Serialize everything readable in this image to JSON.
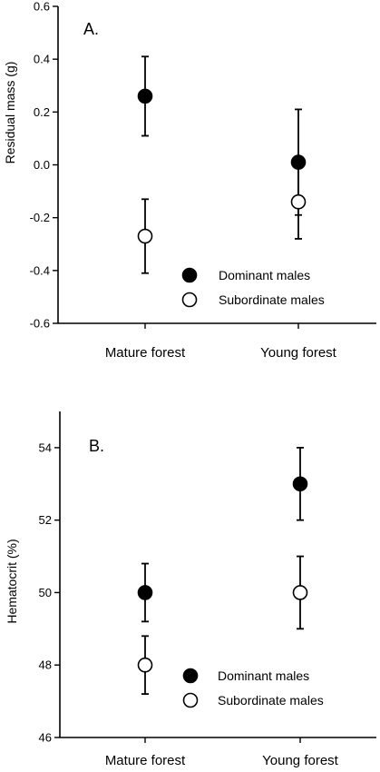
{
  "chart_data": [
    {
      "type": "scatter",
      "panel_label": "A.",
      "ylabel": "Residual mass (g)",
      "xlabel": "",
      "categories": [
        "Mature forest",
        "Young forest"
      ],
      "ylim": [
        -0.6,
        0.6
      ],
      "yticks": [
        "0.6",
        "0.4",
        "0.2",
        "0.0",
        "-0.2",
        "-0.4",
        "-0.6"
      ],
      "ytick_values": [
        0.6,
        0.4,
        0.2,
        0.0,
        -0.2,
        -0.4,
        -0.6
      ],
      "series": [
        {
          "name": "Dominant males",
          "fill": "#000000",
          "values": [
            0.26,
            0.01
          ],
          "err_low": [
            0.11,
            -0.19
          ],
          "err_high": [
            0.41,
            0.21
          ]
        },
        {
          "name": "Subordinate males",
          "fill": "#ffffff",
          "values": [
            -0.27,
            -0.14
          ],
          "err_low": [
            -0.41,
            -0.28
          ],
          "err_high": [
            -0.13,
            0.0
          ]
        }
      ],
      "legend": [
        "Dominant males",
        "Subordinate males"
      ],
      "grid": false,
      "legend_placement": "bottom-center"
    },
    {
      "type": "scatter",
      "panel_label": "B.",
      "ylabel": "Hematocrit (%)",
      "xlabel": "",
      "categories": [
        "Mature forest",
        "Young forest"
      ],
      "ylim": [
        46,
        55
      ],
      "yticks": [
        "54",
        "52",
        "50",
        "48",
        "46"
      ],
      "ytick_values": [
        54,
        52,
        50,
        48,
        46
      ],
      "series": [
        {
          "name": "Dominant males",
          "fill": "#000000",
          "values": [
            50.0,
            53.0
          ],
          "err_low": [
            49.2,
            52.0
          ],
          "err_high": [
            50.8,
            54.0
          ]
        },
        {
          "name": "Subordinate males",
          "fill": "#ffffff",
          "values": [
            48.0,
            50.0
          ],
          "err_low": [
            47.2,
            49.0
          ],
          "err_high": [
            48.8,
            51.0
          ]
        }
      ],
      "legend": [
        "Dominant males",
        "Subordinate males"
      ],
      "grid": false,
      "legend_placement": "bottom-center"
    }
  ]
}
